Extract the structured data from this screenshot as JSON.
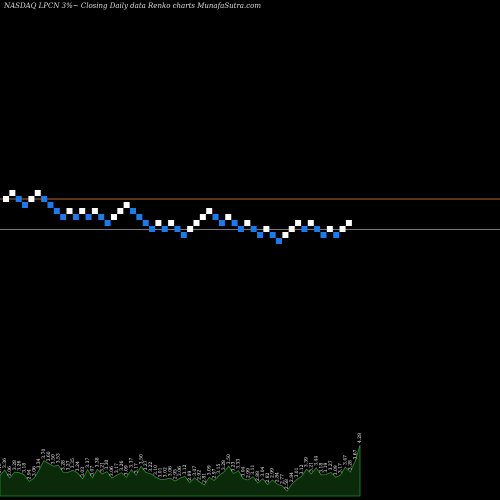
{
  "title": "NASDAQ LPCN  3%~   Closing Daily data  Renko  charts MunafaSutra.com",
  "colors": {
    "background": "#000000",
    "up_brick": "#ffffff",
    "down_brick": "#1f7ae8",
    "reference_line": "#b8682a",
    "volume_fill": "#0a2a0a",
    "volume_stroke": "#2e8b2e"
  },
  "chart_data": [
    {
      "type": "renko",
      "title": "NASDAQ LPCN  3%~   Closing Daily data  Renko  charts MunafaSutra.com",
      "brick_size": "3%",
      "reference_lines": [
        5.0,
        4.55
      ],
      "bricks": [
        {
          "dir": "up",
          "level": 4.9
        },
        {
          "dir": "up",
          "level": 5.0
        },
        {
          "dir": "down",
          "level": 4.9
        },
        {
          "dir": "down",
          "level": 4.8
        },
        {
          "dir": "up",
          "level": 4.9
        },
        {
          "dir": "up",
          "level": 5.0
        },
        {
          "dir": "down",
          "level": 4.9
        },
        {
          "dir": "down",
          "level": 4.8
        },
        {
          "dir": "down",
          "level": 4.7
        },
        {
          "dir": "down",
          "level": 4.6
        },
        {
          "dir": "up",
          "level": 4.7
        },
        {
          "dir": "down",
          "level": 4.6
        },
        {
          "dir": "up",
          "level": 4.7
        },
        {
          "dir": "down",
          "level": 4.6
        },
        {
          "dir": "up",
          "level": 4.7
        },
        {
          "dir": "down",
          "level": 4.6
        },
        {
          "dir": "down",
          "level": 4.5
        },
        {
          "dir": "up",
          "level": 4.6
        },
        {
          "dir": "up",
          "level": 4.7
        },
        {
          "dir": "up",
          "level": 4.8
        },
        {
          "dir": "down",
          "level": 4.7
        },
        {
          "dir": "down",
          "level": 4.6
        },
        {
          "dir": "down",
          "level": 4.5
        },
        {
          "dir": "down",
          "level": 4.4
        },
        {
          "dir": "up",
          "level": 4.5
        },
        {
          "dir": "down",
          "level": 4.4
        },
        {
          "dir": "up",
          "level": 4.5
        },
        {
          "dir": "down",
          "level": 4.4
        },
        {
          "dir": "down",
          "level": 4.3
        },
        {
          "dir": "up",
          "level": 4.4
        },
        {
          "dir": "up",
          "level": 4.5
        },
        {
          "dir": "up",
          "level": 4.6
        },
        {
          "dir": "up",
          "level": 4.7
        },
        {
          "dir": "down",
          "level": 4.6
        },
        {
          "dir": "down",
          "level": 4.5
        },
        {
          "dir": "up",
          "level": 4.6
        },
        {
          "dir": "down",
          "level": 4.5
        },
        {
          "dir": "down",
          "level": 4.4
        },
        {
          "dir": "up",
          "level": 4.5
        },
        {
          "dir": "down",
          "level": 4.4
        },
        {
          "dir": "down",
          "level": 4.3
        },
        {
          "dir": "up",
          "level": 4.4
        },
        {
          "dir": "down",
          "level": 4.3
        },
        {
          "dir": "down",
          "level": 4.2
        },
        {
          "dir": "up",
          "level": 4.3
        },
        {
          "dir": "up",
          "level": 4.4
        },
        {
          "dir": "up",
          "level": 4.5
        },
        {
          "dir": "down",
          "level": 4.4
        },
        {
          "dir": "up",
          "level": 4.5
        },
        {
          "dir": "down",
          "level": 4.4
        },
        {
          "dir": "down",
          "level": 4.3
        },
        {
          "dir": "up",
          "level": 4.4
        },
        {
          "dir": "down",
          "level": 4.3
        },
        {
          "dir": "up",
          "level": 4.4
        },
        {
          "dir": "up",
          "level": 4.5
        }
      ],
      "volume": [
        {
          "label": "3.16",
          "value": 3.16
        },
        {
          "label": "3.36",
          "value": 3.36
        },
        {
          "label": "3.06",
          "value": 3.06
        },
        {
          "label": "3.28",
          "value": 3.28
        },
        {
          "label": "3.26",
          "value": 3.26
        },
        {
          "label": "3.18",
          "value": 3.18
        },
        {
          "label": "2.94",
          "value": 2.94
        },
        {
          "label": "3.06",
          "value": 3.06
        },
        {
          "label": "3.34",
          "value": 3.34
        },
        {
          "label": "3.70",
          "value": 3.7
        },
        {
          "label": "3.60",
          "value": 3.6
        },
        {
          "label": "3.50",
          "value": 3.5
        },
        {
          "label": "3.53",
          "value": 3.53
        },
        {
          "label": "3.28",
          "value": 3.28
        },
        {
          "label": "3.27",
          "value": 3.27
        },
        {
          "label": "3.35",
          "value": 3.35
        },
        {
          "label": "3.24",
          "value": 3.24
        },
        {
          "label": "3.03",
          "value": 3.03
        },
        {
          "label": "3.37",
          "value": 3.37
        },
        {
          "label": "3.07",
          "value": 3.07
        },
        {
          "label": "3.38",
          "value": 3.38
        },
        {
          "label": "3.21",
          "value": 3.21
        },
        {
          "label": "3.30",
          "value": 3.3
        },
        {
          "label": "3.06",
          "value": 3.06
        },
        {
          "label": "3.17",
          "value": 3.17
        },
        {
          "label": "3.26",
          "value": 3.26
        },
        {
          "label": "3.09",
          "value": 3.09
        },
        {
          "label": "3.37",
          "value": 3.37
        },
        {
          "label": "3.17",
          "value": 3.17
        },
        {
          "label": "3.50",
          "value": 3.5
        },
        {
          "label": "3.27",
          "value": 3.27
        },
        {
          "label": "3.22",
          "value": 3.22
        },
        {
          "label": "3.10",
          "value": 3.1
        },
        {
          "label": "3.01",
          "value": 3.01
        },
        {
          "label": "3.02",
          "value": 3.02
        },
        {
          "label": "3.06",
          "value": 3.06
        },
        {
          "label": "2.95",
          "value": 2.95
        },
        {
          "label": "3.06",
          "value": 3.06
        },
        {
          "label": "3.12",
          "value": 3.12
        },
        {
          "label": "2.89",
          "value": 2.89
        },
        {
          "label": "3.07",
          "value": 3.07
        },
        {
          "label": "2.92",
          "value": 2.92
        },
        {
          "label": "2.81",
          "value": 2.81
        },
        {
          "label": "3.09",
          "value": 3.09
        },
        {
          "label": "2.97",
          "value": 2.97
        },
        {
          "label": "3.15",
          "value": 3.15
        },
        {
          "label": "3.28",
          "value": 3.28
        },
        {
          "label": "3.50",
          "value": 3.5
        },
        {
          "label": "3.23",
          "value": 3.23
        },
        {
          "label": "3.33",
          "value": 3.33
        },
        {
          "label": "3.04",
          "value": 3.04
        },
        {
          "label": "2.99",
          "value": 2.99
        },
        {
          "label": "3.11",
          "value": 3.11
        },
        {
          "label": "2.88",
          "value": 2.88
        },
        {
          "label": "3.04",
          "value": 3.04
        },
        {
          "label": "2.82",
          "value": 2.82
        },
        {
          "label": "2.99",
          "value": 2.99
        },
        {
          "label": "2.84",
          "value": 2.84
        },
        {
          "label": "2.77",
          "value": 2.77
        },
        {
          "label": "2.58",
          "value": 2.58
        },
        {
          "label": "2.84",
          "value": 2.84
        },
        {
          "label": "3.01",
          "value": 3.01
        },
        {
          "label": "3.12",
          "value": 3.12
        },
        {
          "label": "3.39",
          "value": 3.39
        },
        {
          "label": "3.21",
          "value": 3.21
        },
        {
          "label": "3.44",
          "value": 3.44
        },
        {
          "label": "3.18",
          "value": 3.18
        },
        {
          "label": "3.19",
          "value": 3.19
        },
        {
          "label": "3.27",
          "value": 3.27
        },
        {
          "label": "3.09",
          "value": 3.09
        },
        {
          "label": "3.17",
          "value": 3.17
        },
        {
          "label": "3.47",
          "value": 3.47
        },
        {
          "label": "3.28",
          "value": 3.28
        },
        {
          "label": "3.67",
          "value": 3.67
        },
        {
          "label": "4.28",
          "value": 4.28
        }
      ]
    }
  ]
}
